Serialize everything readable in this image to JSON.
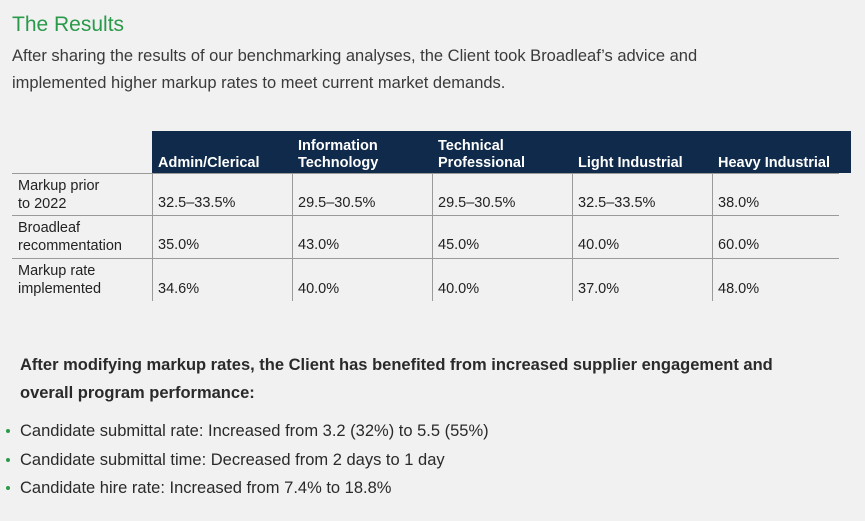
{
  "title": "The Results",
  "intro": "After sharing the results of our benchmarking analyses, the Client took Broadleaf’s advice and implemented higher markup rates to meet current market demands.",
  "table": {
    "headers": [
      "Admin/Clerical",
      "Information\nTechnology",
      "Technical\nProfessional",
      "Light Industrial",
      "Heavy Industrial"
    ],
    "rows": [
      {
        "label": "Markup prior\nto 2022",
        "values": [
          "32.5–33.5%",
          "29.5–30.5%",
          "29.5–30.5%",
          "32.5–33.5%",
          "38.0%"
        ]
      },
      {
        "label": "Broadleaf\nrecommentation",
        "values": [
          "35.0%",
          "43.0%",
          "45.0%",
          "40.0%",
          "60.0%"
        ]
      },
      {
        "label": "Markup rate\nimplemented",
        "values": [
          "34.6%",
          "40.0%",
          "40.0%",
          "37.0%",
          "48.0%"
        ]
      }
    ]
  },
  "summary": "After modifying markup rates, the Client has benefited from increased supplier engagement and overall program performance:",
  "bullets": [
    "Candidate submittal rate: Increased from 3.2 (32%) to 5.5 (55%)",
    "Candidate submittal time: Decreased from 2 days to 1 day",
    "Candidate hire rate: Increased from 7.4% to 18.8%"
  ],
  "colors": {
    "accent": "#2a9a4a",
    "header_bg": "#0f2a4a"
  }
}
